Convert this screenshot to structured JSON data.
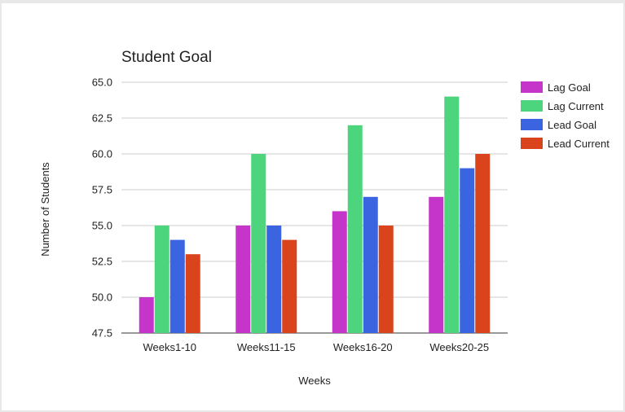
{
  "chart_data": {
    "type": "bar",
    "title": "Student Goal",
    "xlabel": "Weeks",
    "ylabel": "Number of Students",
    "categories": [
      "Weeks1-10",
      "Weeks11-15",
      "Weeks16-20",
      "Weeks20-25"
    ],
    "series": [
      {
        "name": "Lag Goal",
        "color": "#c535c9",
        "values": [
          50,
          55,
          56,
          57
        ]
      },
      {
        "name": "Lag Current",
        "color": "#4dd57d",
        "values": [
          55,
          60,
          62,
          64
        ]
      },
      {
        "name": "Lead Goal",
        "color": "#3b64e0",
        "values": [
          54,
          55,
          57,
          59
        ]
      },
      {
        "name": "Lead Current",
        "color": "#d9441d",
        "values": [
          53,
          54,
          55,
          60
        ]
      }
    ],
    "ylim": [
      47.5,
      65.0
    ],
    "yticks": [
      "47.5",
      "50.0",
      "52.5",
      "55.0",
      "57.5",
      "60.0",
      "62.5",
      "65.0"
    ],
    "grid": true,
    "legend_position": "right"
  }
}
